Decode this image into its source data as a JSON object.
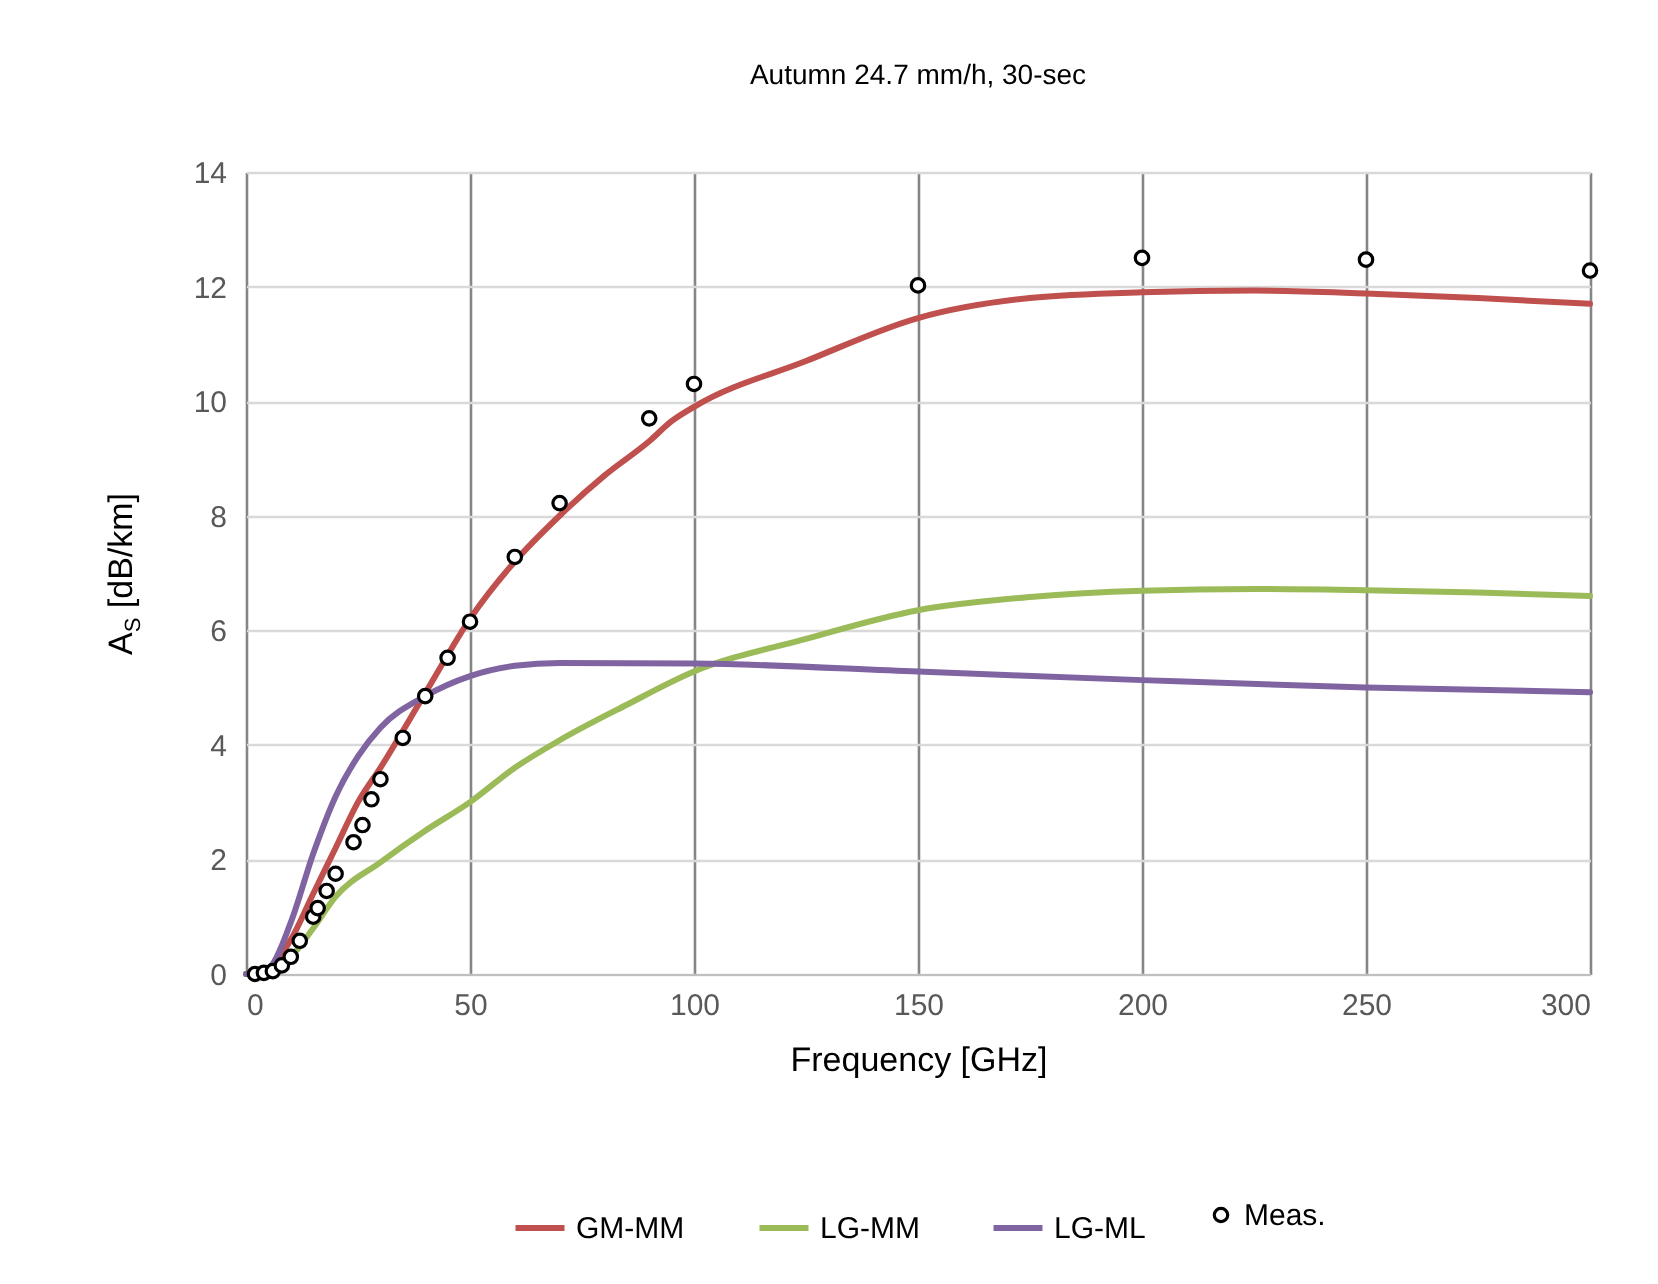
{
  "chart_data": {
    "type": "line",
    "title": "Autumn 24.7 mm/h, 30-sec",
    "xlabel": "Frequency [GHz]",
    "ylabel": "A$_{S}$ [dB/km]",
    "xlim": [
      0,
      300
    ],
    "xticks": [
      0,
      50,
      100,
      150,
      200,
      250,
      300
    ],
    "ylim": [
      0,
      14
    ],
    "yticks": [
      0,
      2,
      4,
      6,
      8,
      10,
      12,
      14
    ],
    "grid": true,
    "legend": "bottom",
    "series": [
      {
        "name": "Meas.",
        "type": "scatter",
        "marker": "circle",
        "color": "#000000",
        "x": [
          2,
          4,
          6,
          8,
          10,
          12,
          15,
          16,
          18,
          20,
          24,
          26,
          28,
          30,
          35,
          40,
          45,
          50,
          60,
          70,
          90,
          100,
          150,
          200,
          250,
          300
        ],
        "values": [
          0,
          0.02,
          0.05,
          0.15,
          0.3,
          0.58,
          1.0,
          1.15,
          1.45,
          1.75,
          2.3,
          2.6,
          3.05,
          3.4,
          4.12,
          4.85,
          5.52,
          6.15,
          7.28,
          8.22,
          9.7,
          10.3,
          12.02,
          12.5,
          12.47,
          12.28
        ]
      },
      {
        "name": "GM-MM",
        "type": "line",
        "marker": "none",
        "color": "#c0504d",
        "x": [
          0,
          5,
          10,
          15,
          20,
          25,
          30,
          40,
          50,
          60,
          70,
          80,
          90,
          95,
          100,
          125,
          150,
          175,
          200,
          225,
          250,
          275,
          300
        ],
        "values": [
          0,
          0.1,
          0.6,
          1.4,
          2.2,
          3.0,
          3.6,
          4.9,
          6.2,
          7.2,
          8.0,
          8.7,
          9.3,
          9.65,
          9.9,
          10.7,
          11.45,
          11.8,
          11.9,
          11.93,
          11.88,
          11.8,
          11.7
        ]
      },
      {
        "name": "LG-MM",
        "type": "line",
        "marker": "none",
        "color": "#9bbb59",
        "x": [
          0,
          5,
          10,
          15,
          20,
          30,
          40,
          50,
          60,
          70,
          85,
          100,
          125,
          150,
          175,
          200,
          225,
          250,
          275,
          300
        ],
        "values": [
          0,
          0.08,
          0.3,
          0.8,
          1.35,
          1.95,
          2.5,
          3.0,
          3.6,
          4.08,
          4.7,
          5.28,
          5.85,
          6.35,
          6.58,
          6.69,
          6.72,
          6.7,
          6.66,
          6.6
        ]
      },
      {
        "name": "LG-ML",
        "type": "line",
        "marker": "none",
        "color": "#8064a2",
        "x": [
          0,
          5,
          10,
          15,
          20,
          25,
          30,
          40,
          50,
          60,
          70,
          100,
          150,
          200,
          250,
          300
        ],
        "values": [
          0,
          0.1,
          0.9,
          2.1,
          3.1,
          3.8,
          4.3,
          4.85,
          5.2,
          5.38,
          5.43,
          5.42,
          5.28,
          5.13,
          5.0,
          4.92
        ]
      }
    ]
  }
}
